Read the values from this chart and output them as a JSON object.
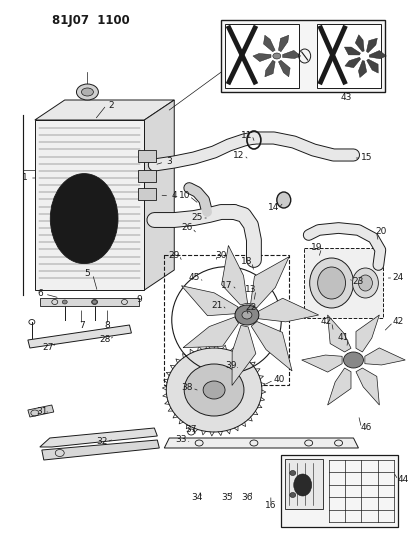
{
  "title": "81J07 1100",
  "bg_color": "#ffffff",
  "line_color": "#1a1a1a",
  "fig_width": 4.1,
  "fig_height": 5.33,
  "dpi": 100
}
